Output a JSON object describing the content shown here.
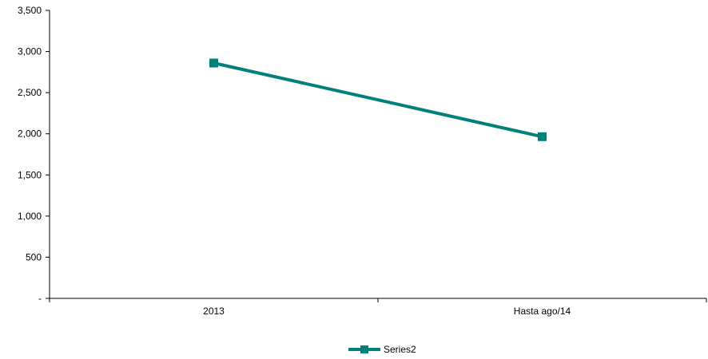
{
  "chart_data": {
    "type": "line",
    "categories": [
      "2013",
      "Hasta ago/14"
    ],
    "series": [
      {
        "name": "Series2",
        "values": [
          2860,
          1965
        ],
        "color": "#00807a",
        "marker": "square"
      }
    ],
    "yticks": [
      "-",
      "500",
      "1,000",
      "1,500",
      "2,000",
      "2,500",
      "3,000",
      "3,500"
    ],
    "ylim": [
      0,
      3500
    ],
    "grid": false,
    "legend_position": "bottom"
  }
}
